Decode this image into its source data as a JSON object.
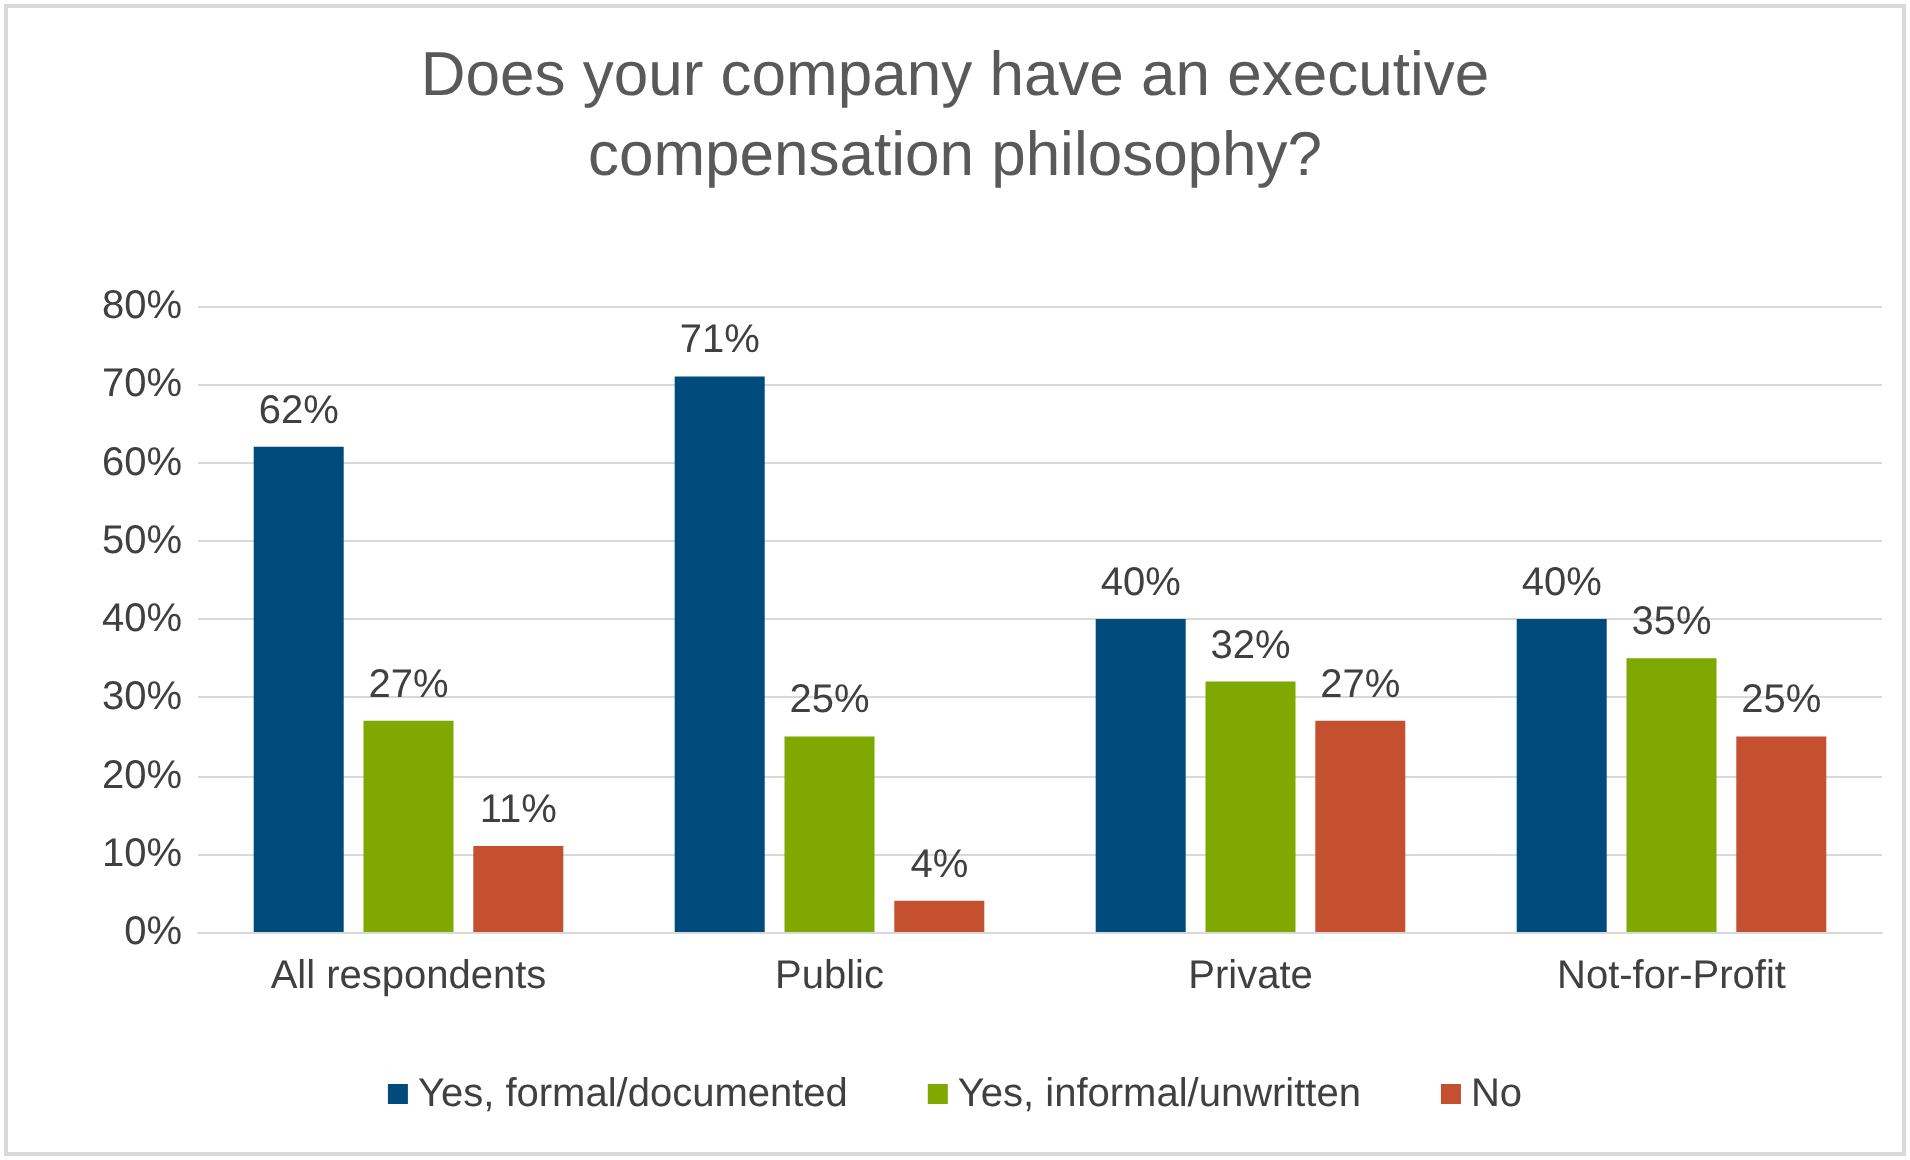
{
  "chart_data": {
    "type": "bar",
    "title": "Does your company have an executive\ncompensation philosophy?",
    "categories": [
      "All respondents",
      "Public",
      "Private",
      "Not-for-Profit"
    ],
    "series": [
      {
        "name": "Yes, formal/documented",
        "color": "#004b7c",
        "values": [
          62,
          71,
          40,
          40
        ],
        "value_labels": [
          "62%",
          "71%",
          "40%",
          "40%"
        ]
      },
      {
        "name": "Yes, informal/unwritten",
        "color": "#7fa800",
        "values": [
          27,
          25,
          32,
          35
        ],
        "value_labels": [
          "27%",
          "25%",
          "32%",
          "35%"
        ]
      },
      {
        "name": "No",
        "color": "#c4502f",
        "values": [
          11,
          4,
          27,
          25
        ],
        "value_labels": [
          "11%",
          "4%",
          "27%",
          "25%"
        ]
      }
    ],
    "ylim": [
      0,
      80
    ],
    "yticks": [
      {
        "value": 0,
        "label": "0%"
      },
      {
        "value": 10,
        "label": "10%"
      },
      {
        "value": 20,
        "label": "20%"
      },
      {
        "value": 30,
        "label": "30%"
      },
      {
        "value": 40,
        "label": "40%"
      },
      {
        "value": 50,
        "label": "50%"
      },
      {
        "value": 60,
        "label": "60%"
      },
      {
        "value": 70,
        "label": "70%"
      },
      {
        "value": 80,
        "label": "80%"
      }
    ],
    "grid": "y",
    "legend": "bottom"
  }
}
